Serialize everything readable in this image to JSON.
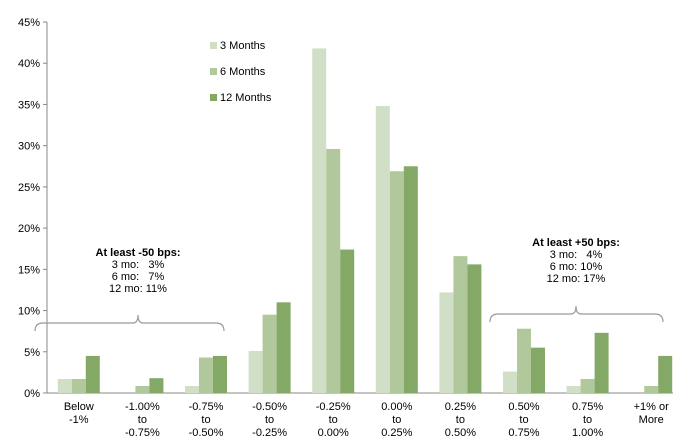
{
  "chart_data": {
    "type": "bar",
    "title": "",
    "xlabel": "",
    "ylabel": "",
    "ylim": [
      0,
      45
    ],
    "y_ticks": [
      "0%",
      "5%",
      "10%",
      "15%",
      "20%",
      "25%",
      "30%",
      "35%",
      "40%",
      "45%"
    ],
    "grid": false,
    "legend_position": "top-left-center",
    "categories": [
      [
        "Below",
        "-1%"
      ],
      [
        "-1.00%",
        "to",
        "-0.75%"
      ],
      [
        "-0.75%",
        "to",
        "-0.50%"
      ],
      [
        "-0.50%",
        "to",
        "-0.25%"
      ],
      [
        "-0.25%",
        "to",
        "0.00%"
      ],
      [
        "0.00%",
        "to",
        "0.25%"
      ],
      [
        "0.25%",
        "to",
        "0.50%"
      ],
      [
        "0.50%",
        "to",
        "0.75%"
      ],
      [
        "0.75%",
        "to",
        "1.00%"
      ],
      [
        "+1% or",
        "More"
      ]
    ],
    "series": [
      {
        "name": "3 Months",
        "color": "#d2dfc7",
        "values": [
          1.7,
          0,
          0.85,
          5.1,
          41.8,
          34.8,
          12.2,
          2.6,
          0.85,
          0
        ]
      },
      {
        "name": "6 Months",
        "color": "#b0c89c",
        "values": [
          1.7,
          0.85,
          4.3,
          9.5,
          29.6,
          26.9,
          16.6,
          7.8,
          1.7,
          0.85
        ]
      },
      {
        "name": "12 Months",
        "color": "#84a966",
        "values": [
          4.5,
          1.8,
          4.5,
          11.0,
          17.4,
          27.5,
          15.6,
          5.5,
          7.3,
          4.5
        ]
      }
    ],
    "annotations": [
      {
        "title": "At least -50 bps:",
        "lines": [
          "3 mo:   3%",
          "6 mo:   7%",
          "12 mo: 11%"
        ],
        "span": [
          0,
          2
        ]
      },
      {
        "title": "At least +50 bps:",
        "lines": [
          "3 mo:   4%",
          "6 mo: 10%",
          "12 mo: 17%"
        ],
        "span": [
          7,
          9
        ]
      }
    ]
  }
}
